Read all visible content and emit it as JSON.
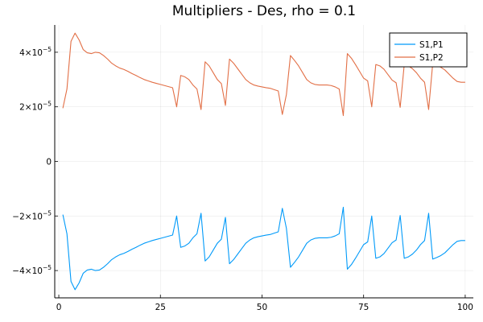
{
  "chart_data": {
    "type": "line",
    "title": "Multipliers - Des, rho = 0.1",
    "xlabel": "",
    "ylabel": "",
    "xlim": [
      -1,
      102
    ],
    "ylim": [
      -5e-05,
      5e-05
    ],
    "x_ticks": [
      {
        "value": 0,
        "label": "0"
      },
      {
        "value": 25,
        "label": "25"
      },
      {
        "value": 50,
        "label": "50"
      },
      {
        "value": 75,
        "label": "75"
      },
      {
        "value": 100,
        "label": "100"
      }
    ],
    "y_ticks": [
      {
        "value": -4e-05,
        "base": "−4×10",
        "exp": "−5"
      },
      {
        "value": -2e-05,
        "base": "−2×10",
        "exp": "−5"
      },
      {
        "value": 0,
        "base": "0",
        "exp": ""
      },
      {
        "value": 2e-05,
        "base": "2×10",
        "exp": "−5"
      },
      {
        "value": 4e-05,
        "base": "4×10",
        "exp": "−5"
      }
    ],
    "grid": true,
    "legend_position": "top-right",
    "series": [
      {
        "name": "S1,P1",
        "color": "#009af9",
        "x": [
          1,
          2,
          3,
          4,
          5,
          6,
          7,
          8,
          9,
          10,
          11,
          12,
          13,
          14,
          15,
          16,
          17,
          18,
          19,
          20,
          21,
          22,
          23,
          24,
          25,
          26,
          27,
          28,
          29,
          30,
          31,
          32,
          33,
          34,
          35,
          36,
          37,
          38,
          39,
          40,
          41,
          42,
          43,
          44,
          45,
          46,
          47,
          48,
          49,
          50,
          51,
          52,
          53,
          54,
          55,
          56,
          57,
          58,
          59,
          60,
          61,
          62,
          63,
          64,
          65,
          66,
          67,
          68,
          69,
          70,
          71,
          72,
          73,
          74,
          75,
          76,
          77,
          78,
          79,
          80,
          81,
          82,
          83,
          84,
          85,
          86,
          87,
          88,
          89,
          90,
          91,
          92,
          93,
          94,
          95,
          96,
          97,
          98,
          99,
          100
        ],
        "values": [
          -1.95e-05,
          -2.65e-05,
          -4.4e-05,
          -4.7e-05,
          -4.45e-05,
          -4.1e-05,
          -3.98e-05,
          -3.95e-05,
          -4e-05,
          -3.98e-05,
          -3.88e-05,
          -3.75e-05,
          -3.6e-05,
          -3.5e-05,
          -3.42e-05,
          -3.37e-05,
          -3.3e-05,
          -3.22e-05,
          -3.15e-05,
          -3.07e-05,
          -3e-05,
          -2.95e-05,
          -2.9e-05,
          -2.86e-05,
          -2.82e-05,
          -2.78e-05,
          -2.74e-05,
          -2.7e-05,
          -2e-05,
          -3.15e-05,
          -3.1e-05,
          -3e-05,
          -2.8e-05,
          -2.65e-05,
          -1.9e-05,
          -3.65e-05,
          -3.5e-05,
          -3.25e-05,
          -3e-05,
          -2.85e-05,
          -2.05e-05,
          -3.75e-05,
          -3.6e-05,
          -3.4e-05,
          -3.2e-05,
          -3e-05,
          -2.88e-05,
          -2.8e-05,
          -2.76e-05,
          -2.73e-05,
          -2.7e-05,
          -2.68e-05,
          -2.63e-05,
          -2.58e-05,
          -1.72e-05,
          -2.45e-05,
          -3.88e-05,
          -3.7e-05,
          -3.5e-05,
          -3.25e-05,
          -3e-05,
          -2.88e-05,
          -2.82e-05,
          -2.8e-05,
          -2.8e-05,
          -2.8e-05,
          -2.78e-05,
          -2.73e-05,
          -2.65e-05,
          -1.68e-05,
          -3.95e-05,
          -3.78e-05,
          -3.55e-05,
          -3.3e-05,
          -3.05e-05,
          -2.95e-05,
          -2e-05,
          -3.55e-05,
          -3.5e-05,
          -3.38e-05,
          -3.18e-05,
          -2.98e-05,
          -2.88e-05,
          -1.98e-05,
          -3.55e-05,
          -3.5e-05,
          -3.4e-05,
          -3.25e-05,
          -3.05e-05,
          -2.9e-05,
          -1.9e-05,
          -3.58e-05,
          -3.52e-05,
          -3.45e-05,
          -3.35e-05,
          -3.2e-05,
          -3.05e-05,
          -2.93e-05,
          -2.9e-05,
          -2.9e-05
        ]
      },
      {
        "name": "S1,P2",
        "color": "#e26f46",
        "x": [
          1,
          2,
          3,
          4,
          5,
          6,
          7,
          8,
          9,
          10,
          11,
          12,
          13,
          14,
          15,
          16,
          17,
          18,
          19,
          20,
          21,
          22,
          23,
          24,
          25,
          26,
          27,
          28,
          29,
          30,
          31,
          32,
          33,
          34,
          35,
          36,
          37,
          38,
          39,
          40,
          41,
          42,
          43,
          44,
          45,
          46,
          47,
          48,
          49,
          50,
          51,
          52,
          53,
          54,
          55,
          56,
          57,
          58,
          59,
          60,
          61,
          62,
          63,
          64,
          65,
          66,
          67,
          68,
          69,
          70,
          71,
          72,
          73,
          74,
          75,
          76,
          77,
          78,
          79,
          80,
          81,
          82,
          83,
          84,
          85,
          86,
          87,
          88,
          89,
          90,
          91,
          92,
          93,
          94,
          95,
          96,
          97,
          98,
          99,
          100
        ],
        "values": [
          1.95e-05,
          2.65e-05,
          4.4e-05,
          4.7e-05,
          4.45e-05,
          4.1e-05,
          3.98e-05,
          3.95e-05,
          4e-05,
          3.98e-05,
          3.88e-05,
          3.75e-05,
          3.6e-05,
          3.5e-05,
          3.42e-05,
          3.37e-05,
          3.3e-05,
          3.22e-05,
          3.15e-05,
          3.07e-05,
          3e-05,
          2.95e-05,
          2.9e-05,
          2.86e-05,
          2.82e-05,
          2.78e-05,
          2.74e-05,
          2.7e-05,
          2e-05,
          3.15e-05,
          3.1e-05,
          3e-05,
          2.8e-05,
          2.65e-05,
          1.9e-05,
          3.65e-05,
          3.5e-05,
          3.25e-05,
          3e-05,
          2.85e-05,
          2.05e-05,
          3.75e-05,
          3.6e-05,
          3.4e-05,
          3.2e-05,
          3e-05,
          2.88e-05,
          2.8e-05,
          2.76e-05,
          2.73e-05,
          2.7e-05,
          2.68e-05,
          2.63e-05,
          2.58e-05,
          1.72e-05,
          2.45e-05,
          3.88e-05,
          3.7e-05,
          3.5e-05,
          3.25e-05,
          3e-05,
          2.88e-05,
          2.82e-05,
          2.8e-05,
          2.8e-05,
          2.8e-05,
          2.78e-05,
          2.73e-05,
          2.65e-05,
          1.68e-05,
          3.95e-05,
          3.78e-05,
          3.55e-05,
          3.3e-05,
          3.05e-05,
          2.95e-05,
          2e-05,
          3.55e-05,
          3.5e-05,
          3.38e-05,
          3.18e-05,
          2.98e-05,
          2.88e-05,
          1.98e-05,
          3.55e-05,
          3.5e-05,
          3.4e-05,
          3.25e-05,
          3.05e-05,
          2.9e-05,
          1.9e-05,
          3.58e-05,
          3.52e-05,
          3.45e-05,
          3.35e-05,
          3.2e-05,
          3.05e-05,
          2.93e-05,
          2.9e-05,
          2.9e-05
        ]
      }
    ]
  }
}
